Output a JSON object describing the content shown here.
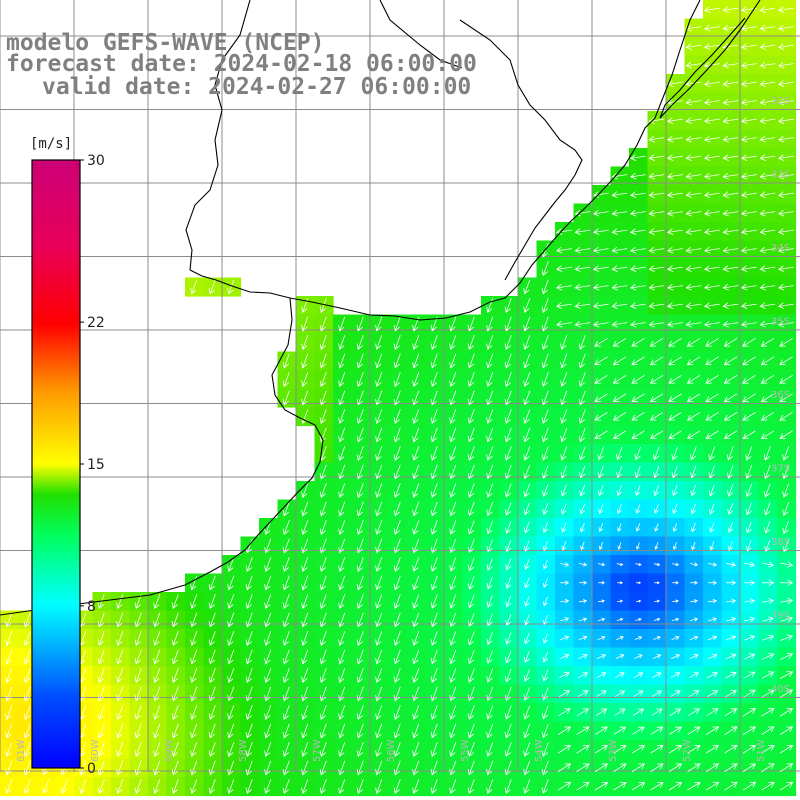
{
  "header": {
    "model": "modelo GEFS-WAVE (NCEP)",
    "forecast": "forecast date: 2024-02-18 06:00:00",
    "valid": "valid date: 2024-02-27 06:00:00"
  },
  "colorbar": {
    "unit": "[m/s]",
    "ticks": [
      "30",
      "22",
      "15",
      "8",
      "0"
    ],
    "tick_values": [
      30,
      22,
      15,
      8,
      0
    ]
  },
  "grid": {
    "lat_labels": [
      "32S",
      "33S",
      "34S",
      "35S",
      "36S",
      "37S",
      "38S",
      "39S",
      "40S"
    ],
    "lon_labels": [
      "61W",
      "60W",
      "59W",
      "58W",
      "57W",
      "56W",
      "55W",
      "54W",
      "53W",
      "52W",
      "51W"
    ]
  },
  "colors": {
    "land": "#ffffff",
    "coast": "#000000",
    "grid": "#8c8c8c",
    "arrow": "#ffffff",
    "title": "#808080"
  },
  "field": {
    "variable": "wind speed",
    "min_value": 0,
    "max_value": 30,
    "calm_region_center": "offshore, southeast of the estuary",
    "strong_region": "southwest corner, near coast"
  }
}
